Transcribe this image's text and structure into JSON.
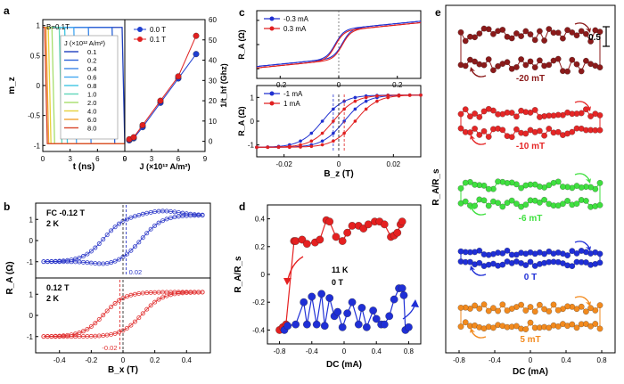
{
  "chart_data": [
    {
      "panel": "a-left",
      "type": "line",
      "panel_label": "a",
      "annotation": "B=0.1T",
      "xlabel": "t (ns)",
      "ylabel": "m_z",
      "xlim": [
        0,
        9
      ],
      "ylim": [
        -1.1,
        1.1
      ],
      "xticks": [
        0,
        3,
        6,
        9
      ],
      "yticks": [
        -1.0,
        -0.5,
        0.0,
        0.5,
        1.0
      ],
      "legend_title": "J (×10¹² A/m²)",
      "series": [
        {
          "name": "0.1",
          "color": "#1f3fbf",
          "switch_time": 8.9
        },
        {
          "name": "0.2",
          "color": "#2b63d8",
          "switch_time": 7.8
        },
        {
          "name": "0.4",
          "color": "#3a86e8",
          "switch_time": 5.2
        },
        {
          "name": "0.6",
          "color": "#43a7f2",
          "switch_time": 3.6
        },
        {
          "name": "0.8",
          "color": "#3fc6e2",
          "switch_time": 2.6
        },
        {
          "name": "1.0",
          "color": "#5fd6b9",
          "switch_time": 2.0
        },
        {
          "name": "2.0",
          "color": "#a6de6c",
          "switch_time": 1.2
        },
        {
          "name": "4.0",
          "color": "#e5d23d",
          "switch_time": 0.8
        },
        {
          "name": "6.0",
          "color": "#f2a131",
          "switch_time": 0.55
        },
        {
          "name": "8.0",
          "color": "#d8452a",
          "switch_time": 0.4
        }
      ]
    },
    {
      "panel": "a-right",
      "type": "scatter",
      "xlabel": "J (×10¹² A/m²)",
      "ylabel": "1/t_hf (Ghz)",
      "xlim": [
        0,
        9
      ],
      "ylim": [
        -5,
        60
      ],
      "xticks": [
        0,
        3,
        6,
        9
      ],
      "yticks": [
        0,
        10,
        20,
        30,
        40,
        50,
        60
      ],
      "series": [
        {
          "name": "0.0 T",
          "color": "#1f3fd0",
          "x": [
            0.5,
            1,
            2,
            4,
            6,
            8
          ],
          "y": [
            0.5,
            1.5,
            7,
            19,
            31,
            43
          ]
        },
        {
          "name": "0.1 T",
          "color": "#e02020",
          "x": [
            0.5,
            1,
            2,
            4,
            6,
            8
          ],
          "y": [
            1,
            2,
            8,
            20,
            32,
            52
          ]
        }
      ]
    },
    {
      "panel": "b",
      "type": "line",
      "panel_label": "b",
      "xlabel": "B_x (T)",
      "ylabel": "R_A (Ω)",
      "xlim": [
        -0.55,
        0.55
      ],
      "xticks": [
        -0.4,
        -0.2,
        0.0,
        0.2,
        0.4
      ],
      "yticks": [
        -1,
        0,
        1
      ],
      "subpanels": [
        {
          "label_line1": "FC -0.12 T",
          "label_line2": "2 K",
          "color": "#2d39c8",
          "marker_value": "0.02",
          "low": -1.0,
          "high": 1.2,
          "peak": 1.4,
          "dip": -1.2
        },
        {
          "label_line1": "0.12 T",
          "label_line2": "2 K",
          "color": "#e03030",
          "marker_value": "-0.02",
          "low": -1.0,
          "high": 1.1,
          "peak": 1.1,
          "dip": -1.1
        }
      ]
    },
    {
      "panel": "c-top",
      "type": "line",
      "panel_label": "c",
      "ylabel": "R_A (Ω)",
      "xlim": [
        -0.28,
        0.28
      ],
      "xticks": [
        -0.2,
        0.0,
        0.2
      ],
      "yticks": [
        -5,
        0,
        5
      ],
      "series": [
        {
          "name": "-0.3 mA",
          "color": "#2030d0"
        },
        {
          "name": "0.3 mA",
          "color": "#e02020"
        }
      ]
    },
    {
      "panel": "c-bottom",
      "type": "line",
      "xlabel": "B_z (T)",
      "ylabel": "R_A (Ω)",
      "xlim": [
        -0.03,
        0.03
      ],
      "xticks": [
        -0.02,
        0.0,
        0.02
      ],
      "yticks": [
        -1,
        0,
        1
      ],
      "series": [
        {
          "name": "-1 mA",
          "color": "#2030d0",
          "coercive": -0.002
        },
        {
          "name": "1 mA",
          "color": "#e02020",
          "coercive": 0.002
        }
      ]
    },
    {
      "panel": "d",
      "type": "scatter",
      "panel_label": "d",
      "xlabel": "DC (mA)",
      "ylabel": "R_A/R_s",
      "xlim": [
        -0.95,
        0.95
      ],
      "ylim": [
        -0.5,
        0.5
      ],
      "xticks": [
        -0.8,
        -0.4,
        0.0,
        0.4,
        0.8
      ],
      "yticks": [
        -0.4,
        -0.2,
        0.0,
        0.2,
        0.4
      ],
      "annotation_line1": "11 K",
      "annotation_line2": "0 T",
      "series": [
        {
          "name": "upper branch",
          "color": "#e52020",
          "x": [
            -0.8,
            -0.76,
            -0.72,
            -0.62,
            -0.6,
            -0.52,
            -0.46,
            -0.36,
            -0.3,
            -0.22,
            -0.18,
            -0.1,
            -0.02,
            0.04,
            0.1,
            0.18,
            0.24,
            0.3,
            0.38,
            0.44,
            0.5,
            0.58,
            0.62,
            0.66,
            0.7,
            0.72
          ],
          "y": [
            -0.4,
            -0.38,
            -0.36,
            0.24,
            0.24,
            0.25,
            0.22,
            0.23,
            0.25,
            0.39,
            0.38,
            0.27,
            0.24,
            0.3,
            0.35,
            0.35,
            0.33,
            0.36,
            0.38,
            0.38,
            0.36,
            0.27,
            0.28,
            0.3,
            0.36,
            0.38
          ]
        },
        {
          "name": "lower branch",
          "color": "#1f2fd6",
          "x": [
            -0.74,
            -0.7,
            -0.6,
            -0.5,
            -0.46,
            -0.4,
            -0.34,
            -0.28,
            -0.24,
            -0.18,
            -0.12,
            -0.08,
            -0.02,
            0.04,
            0.1,
            0.18,
            0.22,
            0.28,
            0.36,
            0.4,
            0.46,
            0.5,
            0.56,
            0.62,
            0.68,
            0.72,
            0.74,
            0.76,
            0.8
          ],
          "y": [
            -0.4,
            -0.37,
            -0.36,
            -0.2,
            -0.36,
            -0.16,
            -0.36,
            -0.14,
            -0.37,
            -0.17,
            -0.3,
            -0.27,
            -0.38,
            -0.28,
            -0.2,
            -0.36,
            -0.24,
            -0.38,
            -0.26,
            -0.32,
            -0.36,
            -0.36,
            -0.3,
            -0.18,
            -0.1,
            -0.1,
            -0.15,
            -0.4,
            -0.38
          ]
        }
      ]
    },
    {
      "panel": "e",
      "type": "scatter",
      "panel_label": "e",
      "xlabel": "DC (mA)",
      "ylabel": "R_A/R_s",
      "xlim": [
        -0.95,
        0.95
      ],
      "xticks": [
        -0.8,
        -0.4,
        0.0,
        0.4,
        0.8
      ],
      "scale_bar_label": "0.5",
      "series": [
        {
          "name": "-20 mT",
          "color": "#8b1a1a",
          "width": 0.34
        },
        {
          "name": "-10 mT",
          "color": "#e52626",
          "width": 0.22
        },
        {
          "name": "-6 mT",
          "color": "#3fe03f",
          "width": 0.2
        },
        {
          "name": "0 T",
          "color": "#1f2fd6",
          "width": 0.12
        },
        {
          "name": "5 mT",
          "color": "#f28a1e",
          "width": 0.2
        }
      ]
    }
  ]
}
